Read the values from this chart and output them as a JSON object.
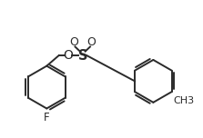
{
  "bg_color": "#ffffff",
  "line_color": "#2a2a2a",
  "line_width": 1.4,
  "font_size": 8.5,
  "figsize": [
    2.23,
    1.52
  ],
  "dpi": 100,
  "label_F": "F",
  "label_O": "O",
  "label_S": "S",
  "label_O1": "O",
  "label_O2": "O",
  "label_CH3": "CH3"
}
